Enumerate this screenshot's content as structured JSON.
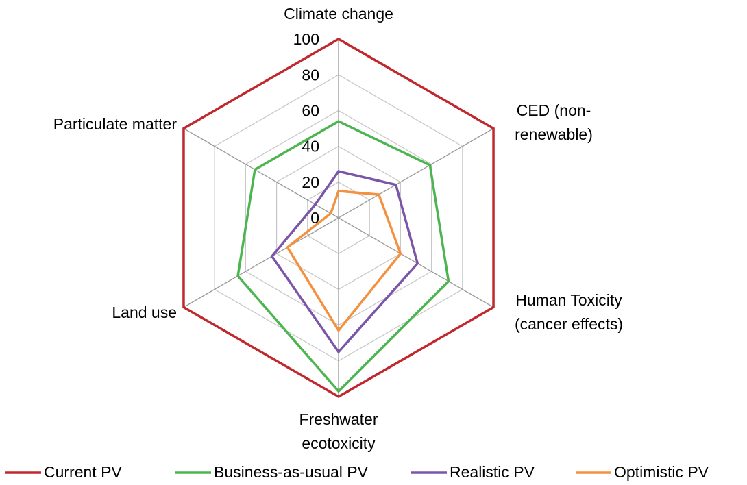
{
  "chart_data": {
    "type": "radar",
    "categories": [
      [
        "Climate change"
      ],
      [
        "CED (non-",
        "renewable)"
      ],
      [
        "Human Toxicity",
        "(cancer effects)"
      ],
      [
        "Freshwater",
        "ecotoxicity"
      ],
      [
        "Land use"
      ],
      [
        "Particulate matter"
      ]
    ],
    "series": [
      {
        "name": "Current PV",
        "color": "#c0282d",
        "values": [
          100,
          100,
          100,
          100,
          100,
          100
        ]
      },
      {
        "name": "Business-as-usual PV",
        "color": "#4cb54f",
        "values": [
          54,
          59,
          71,
          97,
          65,
          54
        ]
      },
      {
        "name": "Realistic PV",
        "color": "#7a55a8",
        "values": [
          26,
          37,
          51,
          75,
          43,
          15
        ]
      },
      {
        "name": "Optimistic PV",
        "color": "#f4913f",
        "values": [
          15,
          26,
          40,
          63,
          33,
          5
        ]
      }
    ],
    "ylim": [
      0,
      100
    ],
    "yticks": [
      0,
      20,
      40,
      60,
      80,
      100
    ],
    "grid": true,
    "legend": "bottom"
  }
}
